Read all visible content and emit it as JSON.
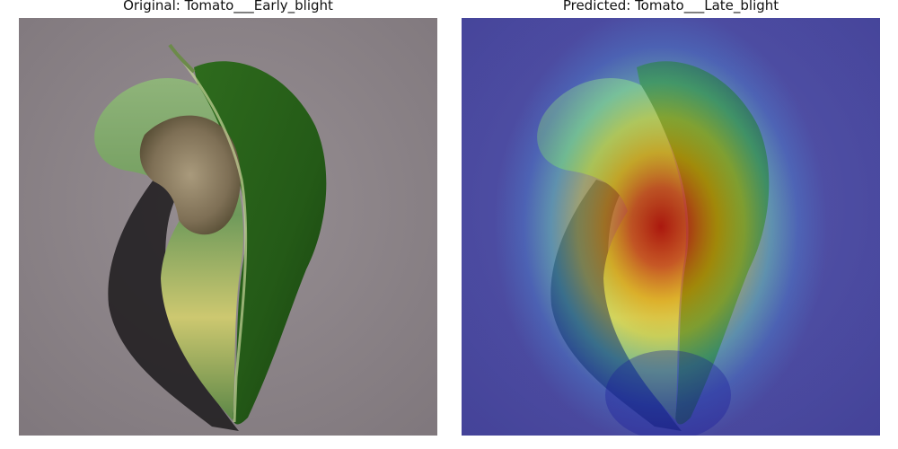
{
  "figure": {
    "left_panel": {
      "title": "Original: Tomato___Early_blight"
    },
    "right_panel": {
      "title": "Predicted: Tomato___Late_blight"
    }
  },
  "colors": {
    "background": "#ffffff",
    "surface": "#8c8388",
    "leaf_dark": "#1f4d16",
    "leaf_mid": "#4f7f3a",
    "leaf_yellow": "#c9c76b",
    "lesion": "#8a7b5f",
    "heat_hot": "#b40000",
    "heat_warm": "#f2a600",
    "heat_cool": "#3b4fd0"
  }
}
